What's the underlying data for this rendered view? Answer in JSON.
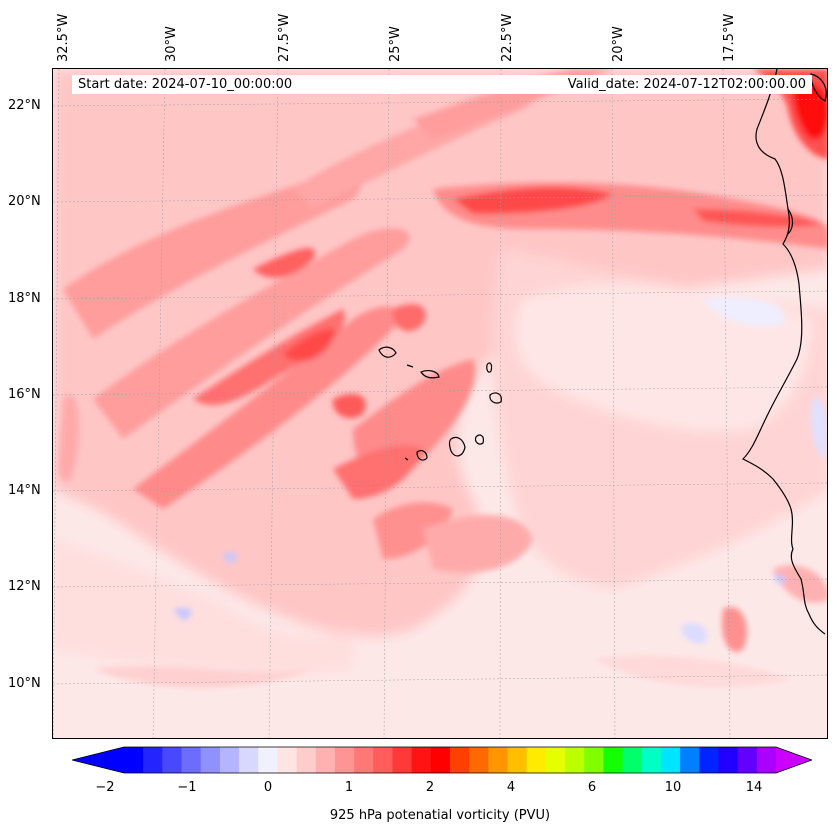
{
  "map": {
    "start_date": "Start date: 2024-07-10_00:00:00",
    "valid_date": "Valid_date: 2024-07-12T02:00:00.00",
    "lon_labels": [
      "32.5°W",
      "30°W",
      "27.5°W",
      "25°W",
      "22.5°W",
      "20°W",
      "17.5°W"
    ],
    "lat_labels": [
      "22°N",
      "20°N",
      "18°N",
      "16°N",
      "14°N",
      "12°N",
      "10°N"
    ],
    "region": "Cape Verde islands and West African coast"
  },
  "colorbar": {
    "ticks": [
      "−2",
      "−1",
      "0",
      "1",
      "2",
      "4",
      "6",
      "10",
      "14"
    ],
    "label": "925 hPa potenatial vorticity (PVU)",
    "colors": [
      "#0000ff",
      "#2424ff",
      "#4848ff",
      "#6c6cff",
      "#9090ff",
      "#b4b4ff",
      "#d8d8ff",
      "#f0f0ff",
      "#ffe4e4",
      "#ffcccc",
      "#ffb0b0",
      "#ff9494",
      "#ff7878",
      "#ff5c5c",
      "#ff3838",
      "#ff1414",
      "#ff0000",
      "#ff4000",
      "#ff6a00",
      "#ff9500",
      "#ffbf00",
      "#ffea00",
      "#e6ff00",
      "#bbff00",
      "#7fff00",
      "#14ff00",
      "#00ff6a",
      "#00ffc4",
      "#00e5ff",
      "#0080ff",
      "#0024ff",
      "#2200ff",
      "#6400ff",
      "#aa00ff"
    ],
    "under_color": "#0000ff",
    "over_color": "#cc00ff"
  }
}
